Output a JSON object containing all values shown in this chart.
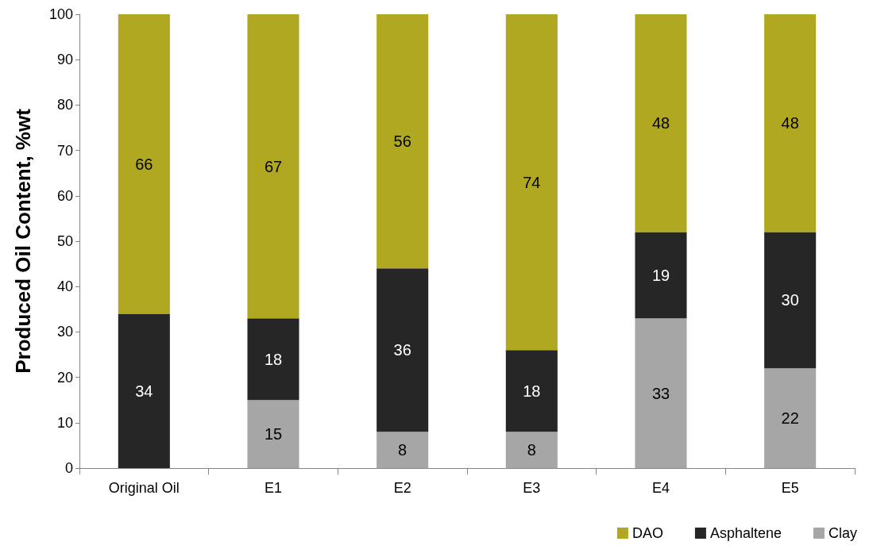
{
  "chart_data": {
    "type": "bar",
    "stacked": true,
    "ylabel": "Produced Oil Content, %wt",
    "categories": [
      "Original Oil",
      "E1",
      "E2",
      "E3",
      "E4",
      "E5"
    ],
    "series": [
      {
        "name": "Clay",
        "color": "#a6a6a6",
        "values": [
          null,
          15,
          8,
          8,
          33,
          22
        ]
      },
      {
        "name": "Asphaltene",
        "color": "#262626",
        "values": [
          34,
          18,
          36,
          18,
          19,
          30
        ]
      },
      {
        "name": "DAO",
        "color": "#afa820",
        "values": [
          66,
          67,
          56,
          74,
          48,
          48
        ]
      }
    ],
    "ylim": [
      0,
      100
    ],
    "yticks": [
      0,
      10,
      20,
      30,
      40,
      50,
      60,
      70,
      80,
      90,
      100
    ],
    "grid": false,
    "legend": "bottom right",
    "data_labels": true
  }
}
